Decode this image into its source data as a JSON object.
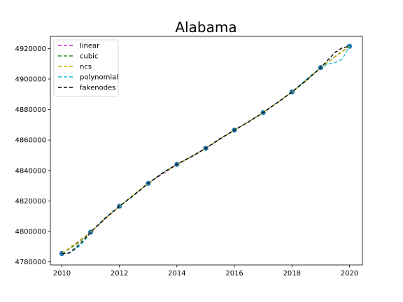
{
  "chart_data": {
    "type": "line",
    "title": "Alabama",
    "xlabel": "",
    "ylabel": "",
    "xlim": [
      2009.6,
      2020.45
    ],
    "ylim": [
      4778000,
      4928000
    ],
    "x_ticks": [
      2010,
      2012,
      2014,
      2016,
      2018,
      2020
    ],
    "y_ticks": [
      4780000,
      4800000,
      4820000,
      4840000,
      4860000,
      4880000,
      4900000,
      4920000
    ],
    "grid": false,
    "legend_position": "upper left",
    "data_points": {
      "x": [
        2010,
        2011,
        2012,
        2013,
        2014,
        2015,
        2016,
        2017,
        2018,
        2019,
        2020
      ],
      "y": [
        4785500,
        4799500,
        4816500,
        4831500,
        4844000,
        4854500,
        4866500,
        4878000,
        4891500,
        4907500,
        4921500
      ],
      "color": "#1f77b4"
    },
    "series": [
      {
        "name": "linear",
        "color": "#cc22cc",
        "x": [
          2010,
          2011,
          2012,
          2013,
          2014,
          2015,
          2016,
          2017,
          2018,
          2019,
          2020
        ],
        "y": [
          4785500,
          4799500,
          4816500,
          4831500,
          4844000,
          4854500,
          4866500,
          4878000,
          4891500,
          4907500,
          4921500
        ]
      },
      {
        "name": "cubic",
        "color": "#228b22",
        "x": [
          2010,
          2010.5,
          2011,
          2011.5,
          2012,
          2012.5,
          2013,
          2013.5,
          2014,
          2014.5,
          2015,
          2015.5,
          2016,
          2016.5,
          2017,
          2017.5,
          2018,
          2018.5,
          2019,
          2019.5,
          2020
        ],
        "y": [
          4785500,
          4791500,
          4799500,
          4808500,
          4816500,
          4824000,
          4831500,
          4838300,
          4844000,
          4849000,
          4854500,
          4860800,
          4866500,
          4872000,
          4878000,
          4884500,
          4891500,
          4899000,
          4907500,
          4914800,
          4921500
        ]
      },
      {
        "name": "ncs",
        "color": "#c8b400",
        "x": [
          2010,
          2010.5,
          2011,
          2011.5,
          2012,
          2012.5,
          2013,
          2013.5,
          2014,
          2014.5,
          2015,
          2015.5,
          2016,
          2016.5,
          2017,
          2017.5,
          2018,
          2018.5,
          2019,
          2019.5,
          2020
        ],
        "y": [
          4785500,
          4792300,
          4799500,
          4808200,
          4816500,
          4824000,
          4831500,
          4838200,
          4844000,
          4849100,
          4854500,
          4860700,
          4866500,
          4872100,
          4878000,
          4884500,
          4891500,
          4899200,
          4907500,
          4914600,
          4921500
        ]
      },
      {
        "name": "polynomial",
        "color": "#17becf",
        "x": [
          2010,
          2010.25,
          2010.5,
          2010.75,
          2011,
          2011.5,
          2012,
          2012.5,
          2013,
          2013.5,
          2014,
          2014.5,
          2015,
          2015.5,
          2016,
          2016.5,
          2017,
          2017.5,
          2018,
          2018.5,
          2019,
          2019.25,
          2019.5,
          2019.75,
          2020
        ],
        "y": [
          4785500,
          4786000,
          4788500,
          4793000,
          4799500,
          4808800,
          4816500,
          4823500,
          4831500,
          4838500,
          4844000,
          4848800,
          4854500,
          4861000,
          4866500,
          4871800,
          4878000,
          4884800,
          4891500,
          4899800,
          4907500,
          4909800,
          4910800,
          4913000,
          4921500
        ]
      },
      {
        "name": "fakenodes",
        "color": "#000000",
        "x": [
          2010,
          2010.25,
          2010.5,
          2010.75,
          2011,
          2011.5,
          2012,
          2012.5,
          2013,
          2013.5,
          2014,
          2014.5,
          2015,
          2015.5,
          2016,
          2016.5,
          2017,
          2017.5,
          2018,
          2018.5,
          2019,
          2019.25,
          2019.5,
          2019.75,
          2020
        ],
        "y": [
          4785500,
          4785800,
          4789500,
          4794200,
          4799500,
          4808500,
          4816500,
          4823800,
          4831500,
          4838300,
          4844000,
          4849000,
          4854500,
          4860800,
          4866500,
          4872000,
          4878000,
          4884600,
          4891500,
          4899000,
          4907500,
          4912500,
          4917500,
          4920500,
          4921500
        ]
      }
    ]
  }
}
